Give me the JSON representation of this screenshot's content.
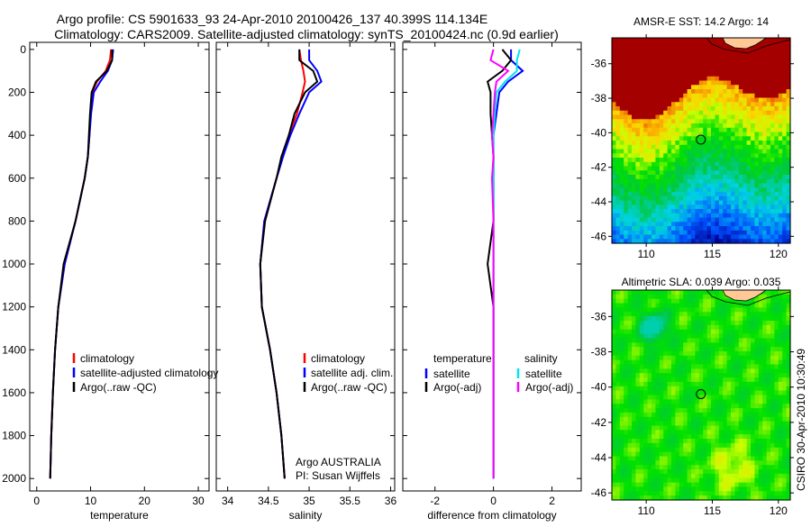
{
  "title": {
    "line1": "Argo profile: CS 5901633_93 24-Apr-2010 20100426_137 40.399S 114.134E",
    "line2": "Climatology: CARS2009. Satellite-adjusted climatology: synTS_20100424.nc (0.9d earlier)"
  },
  "side_label": "CSIRO 30-Apr-2010 10:30:49",
  "colors": {
    "climatology": "#ff0000",
    "satellite": "#0000ff",
    "argo": "#000000",
    "sal_satellite": "#00e5ee",
    "sal_argo": "#ff00ff",
    "land": "#ffc896"
  },
  "chart_data": [
    {
      "type": "line",
      "name": "temperature-panel",
      "xlabel": "temperature",
      "xlim": [
        -1.3,
        32
      ],
      "ylim": [
        2058,
        -33
      ],
      "xticks": [
        0,
        10,
        20,
        30
      ],
      "yticks": [
        0,
        200,
        400,
        600,
        800,
        1000,
        1200,
        1400,
        1600,
        1800,
        2000
      ],
      "depth": [
        0,
        50,
        100,
        150,
        200,
        300,
        400,
        500,
        600,
        800,
        1000,
        1200,
        1400,
        1600,
        1800,
        2000
      ],
      "series": [
        {
          "name": "climatology",
          "color": "#ff0000",
          "values": [
            13.8,
            13.6,
            12.8,
            11.2,
            10.3,
            10.0,
            9.8,
            9.5,
            8.9,
            7.2,
            5.2,
            4.0,
            3.4,
            3.0,
            2.7,
            2.5
          ]
        },
        {
          "name": "satellite-adjusted climatology",
          "color": "#0000ff",
          "values": [
            14.2,
            14.0,
            13.2,
            11.8,
            10.6,
            10.1,
            9.8,
            9.5,
            8.9,
            7.2,
            5.2,
            4.0,
            3.4,
            3.0,
            2.7,
            2.5
          ]
        },
        {
          "name": "Argo(..raw -QC)",
          "color": "#000000",
          "values": [
            14.0,
            14.0,
            13.0,
            11.0,
            10.2,
            9.9,
            9.7,
            9.5,
            8.9,
            7.2,
            5.0,
            4.0,
            3.4,
            3.0,
            2.7,
            2.5
          ]
        }
      ],
      "legend": [
        "climatology",
        "satellite-adjusted climatology",
        "Argo(..raw -QC)"
      ]
    },
    {
      "type": "line",
      "name": "salinity-panel",
      "xlabel": "salinity",
      "xlim": [
        33.86,
        36.05
      ],
      "ylim": [
        2058,
        -33
      ],
      "xticks": [
        "34",
        "34.5",
        "35",
        "35.5",
        "36"
      ],
      "depth": [
        0,
        50,
        100,
        150,
        200,
        300,
        400,
        500,
        600,
        800,
        1000,
        1200,
        1400,
        1600,
        1800,
        2000
      ],
      "series": [
        {
          "name": "climatology",
          "color": "#ff0000",
          "values": [
            34.88,
            34.9,
            34.93,
            34.95,
            34.92,
            34.85,
            34.75,
            34.68,
            34.6,
            34.45,
            34.4,
            34.42,
            34.52,
            34.6,
            34.66,
            34.7
          ]
        },
        {
          "name": "satellite adj. clim.",
          "color": "#0000ff",
          "values": [
            35.0,
            35.0,
            35.1,
            35.15,
            35.0,
            34.88,
            34.77,
            34.68,
            34.6,
            34.45,
            34.4,
            34.42,
            34.52,
            34.6,
            34.66,
            34.7
          ]
        },
        {
          "name": "Argo(..raw -QC)",
          "color": "#000000",
          "values": [
            34.88,
            34.88,
            35.05,
            35.1,
            34.95,
            34.82,
            34.75,
            34.66,
            34.6,
            34.46,
            34.4,
            34.42,
            34.52,
            34.6,
            34.66,
            34.7
          ]
        }
      ],
      "legend": [
        "climatology",
        "satellite adj. clim.",
        "Argo(..raw -QC)"
      ],
      "annotation": [
        "Argo AUSTRALIA",
        "PI: Susan Wijffels"
      ]
    },
    {
      "type": "line",
      "name": "difference-panel",
      "xlabel": "difference from climatology",
      "xlim": [
        -3.1,
        3.0
      ],
      "ylim": [
        2058,
        -33
      ],
      "xticks": [
        "-2",
        "0",
        "2"
      ],
      "depth": [
        0,
        50,
        100,
        150,
        200,
        300,
        400,
        500,
        600,
        800,
        1000,
        1200,
        1400,
        1600,
        1800,
        2000
      ],
      "series": [
        {
          "name": "temperature satellite",
          "color": "#0000ff",
          "values": [
            0.6,
            0.6,
            1.0,
            0.5,
            0.2,
            0.1,
            0,
            0,
            0,
            0,
            0,
            0,
            0,
            0,
            0,
            0
          ]
        },
        {
          "name": "temperature Argo(-adj)",
          "color": "#000000",
          "values": [
            0.3,
            0.6,
            0.3,
            -0.2,
            -0.1,
            -0.1,
            -0.05,
            0,
            0,
            0,
            -0.2,
            0,
            0,
            0,
            0,
            0
          ]
        },
        {
          "name": "salinity satellite",
          "color": "#00e5ee",
          "values": [
            0.9,
            0.8,
            0.8,
            0.4,
            0.1,
            0.05,
            0,
            0,
            0,
            0,
            0,
            0,
            0,
            0,
            0,
            0
          ]
        },
        {
          "name": "salinity Argo(-adj)",
          "color": "#ff00ff",
          "values": [
            0,
            -0.1,
            0.5,
            0.1,
            0.05,
            0,
            -0.05,
            0,
            -0.05,
            0,
            0,
            0,
            0,
            0,
            0,
            0
          ]
        }
      ],
      "legend_headers": [
        "temperature",
        "salinity"
      ],
      "legend": [
        "satellite",
        "Argo(-adj)",
        "satellite",
        "Argo(-adj)"
      ]
    },
    {
      "type": "heatmap",
      "name": "sst-map",
      "title": "AMSR-E SST: 14.2 Argo: 14",
      "xlim": [
        107.4,
        120.9
      ],
      "ylim": [
        -46.4,
        -34.5
      ],
      "xticks": [
        "110",
        "115",
        "120"
      ],
      "yticks": [
        "-36",
        "-38",
        "-40",
        "-42",
        "-44",
        "-46"
      ],
      "argo_position": [
        114.134,
        -40.399
      ]
    },
    {
      "type": "heatmap",
      "name": "sla-map",
      "title": "Altimetric SLA: 0.039 Argo: 0.035",
      "xlim": [
        107.4,
        120.9
      ],
      "ylim": [
        -46.4,
        -34.5
      ],
      "xticks": [
        "110",
        "115",
        "120"
      ],
      "yticks": [
        "-36",
        "-38",
        "-40",
        "-42",
        "-44",
        "-46"
      ],
      "argo_position": [
        114.134,
        -40.399
      ]
    }
  ]
}
